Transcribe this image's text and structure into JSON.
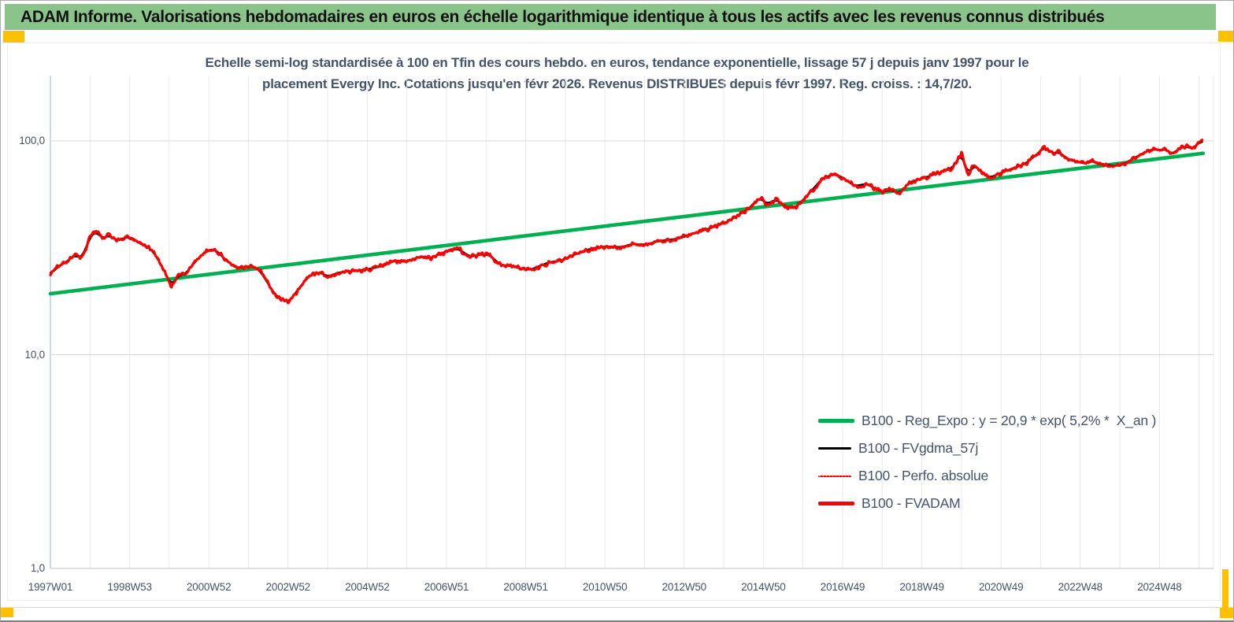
{
  "header": {
    "title": "ADAM Informe. Valorisations hebdomadaires en euros en échelle logarithmique identique à tous les actifs avec les revenus connus distribués"
  },
  "colors": {
    "header_bg": "#8BC48B",
    "accent_yellow": "#FFC000",
    "title_text": "#44546A",
    "axis_text": "#44546A",
    "grid_vertical": "#E7E9EB",
    "grid_horizontal": "#D9D9D9",
    "y_axis_line": "#B4C2D2",
    "x_axis_line": "#C9CDD1",
    "green": "#00B050",
    "red": "#FF0000",
    "black": "#000000"
  },
  "chart_data": {
    "type": "line",
    "title_line1": "Echelle semi-log standardisée à 100 en Tfin des cours hebdo. en euros, tendance exponentielle, lissage 57 j depuis janv 1997 pour le",
    "title_line2": "placement Evergy Inc. Cotations jusqu'en févr 2026. Revenus DISTRIBUES depuis févr 1997. Reg. croiss. : 14,7/20.",
    "y_axis": {
      "scale": "log",
      "ticks": [
        {
          "label": "100,0",
          "value": 100
        },
        {
          "label": "10,0",
          "value": 10
        },
        {
          "label": "1,0",
          "value": 1
        }
      ],
      "range": [
        1,
        200
      ]
    },
    "x_axis": {
      "unit": "year-week",
      "range_years": [
        1997.0,
        2027.3
      ],
      "gridline_interval_years": 1,
      "ticks": [
        {
          "label": "1997W01",
          "year": 1997.0
        },
        {
          "label": "1998W53",
          "year": 1999.0
        },
        {
          "label": "2000W52",
          "year": 2001.0
        },
        {
          "label": "2002W52",
          "year": 2003.0
        },
        {
          "label": "2004W52",
          "year": 2005.0
        },
        {
          "label": "2006W51",
          "year": 2007.0
        },
        {
          "label": "2008W51",
          "year": 2009.0
        },
        {
          "label": "2010W50",
          "year": 2011.0
        },
        {
          "label": "2012W50",
          "year": 2013.0
        },
        {
          "label": "2014W50",
          "year": 2015.0
        },
        {
          "label": "2016W49",
          "year": 2017.0
        },
        {
          "label": "2018W49",
          "year": 2019.0
        },
        {
          "label": "2020W49",
          "year": 2021.0
        },
        {
          "label": "2022W48",
          "year": 2023.0
        },
        {
          "label": "2024W48",
          "year": 2025.0
        }
      ]
    },
    "series": [
      {
        "id": "reg_expo",
        "legend": "B100 - Reg_Expo : y = 20,9 * exp( 5,2% *  X_an )",
        "color": "#00B050",
        "style": "solid",
        "width": 4.6,
        "points": [
          [
            1997.0,
            19.3
          ],
          [
            2026.1,
            87.5
          ]
        ]
      },
      {
        "id": "fvgdma_57j",
        "legend": "B100 - FVgdma_57j",
        "color": "#000000",
        "style": "solid",
        "width": 2.4,
        "derived": "smooth_of_fvadam"
      },
      {
        "id": "perfo_absolue",
        "legend": "B100 - Perfo. absolue",
        "color": "#FF0000",
        "style": "dotted",
        "width": 1.4,
        "derived": "same_as_fvadam"
      },
      {
        "id": "fvadam",
        "legend": "B100 - FVADAM",
        "color": "#FF0000",
        "style": "solid",
        "width": 3.2,
        "appearance": {
          "jitter_pct": 0.016,
          "seed": 7
        },
        "points": [
          [
            1997.0,
            23.5
          ],
          [
            1997.15,
            25.5
          ],
          [
            1997.3,
            26.5
          ],
          [
            1997.45,
            27.5
          ],
          [
            1997.6,
            29.5
          ],
          [
            1997.75,
            28.0
          ],
          [
            1997.9,
            31.5
          ],
          [
            1998.0,
            35.5
          ],
          [
            1998.15,
            37.8
          ],
          [
            1998.3,
            35.0
          ],
          [
            1998.5,
            36.2
          ],
          [
            1998.65,
            34.2
          ],
          [
            1998.8,
            34.8
          ],
          [
            1998.95,
            35.6
          ],
          [
            1999.1,
            35.0
          ],
          [
            1999.3,
            32.7
          ],
          [
            1999.5,
            31.8
          ],
          [
            1999.7,
            28.3
          ],
          [
            1999.9,
            24.3
          ],
          [
            2000.05,
            20.9
          ],
          [
            2000.2,
            23.2
          ],
          [
            2000.4,
            23.8
          ],
          [
            2000.6,
            26.4
          ],
          [
            2000.8,
            29.2
          ],
          [
            2001.0,
            30.8
          ],
          [
            2001.15,
            31.3
          ],
          [
            2001.3,
            29.2
          ],
          [
            2001.5,
            27.1
          ],
          [
            2001.7,
            25.3
          ],
          [
            2001.9,
            25.7
          ],
          [
            2002.1,
            26.0
          ],
          [
            2002.3,
            24.6
          ],
          [
            2002.5,
            21.4
          ],
          [
            2002.7,
            18.8
          ],
          [
            2002.9,
            18.0
          ],
          [
            2003.0,
            17.5
          ],
          [
            2003.2,
            19.6
          ],
          [
            2003.4,
            21.9
          ],
          [
            2003.6,
            23.9
          ],
          [
            2003.8,
            24.3
          ],
          [
            2004.0,
            23.2
          ],
          [
            2004.3,
            24.3
          ],
          [
            2004.6,
            24.6
          ],
          [
            2004.9,
            24.9
          ],
          [
            2005.1,
            25.3
          ],
          [
            2005.4,
            26.0
          ],
          [
            2005.7,
            27.6
          ],
          [
            2006.0,
            27.2
          ],
          [
            2006.3,
            28.7
          ],
          [
            2006.6,
            28.3
          ],
          [
            2007.0,
            30.5
          ],
          [
            2007.3,
            31.3
          ],
          [
            2007.6,
            28.7
          ],
          [
            2007.9,
            29.5
          ],
          [
            2008.1,
            29.2
          ],
          [
            2008.35,
            26.4
          ],
          [
            2008.6,
            26.0
          ],
          [
            2008.9,
            25.3
          ],
          [
            2009.1,
            24.9
          ],
          [
            2009.35,
            26.0
          ],
          [
            2009.6,
            27.1
          ],
          [
            2009.9,
            27.6
          ],
          [
            2010.2,
            29.2
          ],
          [
            2010.5,
            30.8
          ],
          [
            2010.8,
            31.8
          ],
          [
            2011.1,
            32.1
          ],
          [
            2011.4,
            31.8
          ],
          [
            2011.7,
            33.0
          ],
          [
            2012.0,
            32.7
          ],
          [
            2012.4,
            34.1
          ],
          [
            2012.8,
            34.8
          ],
          [
            2013.0,
            35.6
          ],
          [
            2013.4,
            37.8
          ],
          [
            2013.6,
            38.7
          ],
          [
            2014.1,
            42.0
          ],
          [
            2014.6,
            47.8
          ],
          [
            2014.9,
            54.2
          ],
          [
            2015.1,
            50.6
          ],
          [
            2015.3,
            53.3
          ],
          [
            2015.6,
            49.0
          ],
          [
            2015.8,
            48.6
          ],
          [
            2016.1,
            55.4
          ],
          [
            2016.5,
            67.1
          ],
          [
            2016.8,
            70.0
          ],
          [
            2017.0,
            67.5
          ],
          [
            2017.3,
            61.5
          ],
          [
            2017.6,
            63.0
          ],
          [
            2018.0,
            57.6
          ],
          [
            2018.2,
            59.1
          ],
          [
            2018.45,
            57.0
          ],
          [
            2018.7,
            64.4
          ],
          [
            2019.0,
            66.5
          ],
          [
            2019.2,
            68.6
          ],
          [
            2019.5,
            71.6
          ],
          [
            2019.7,
            73.6
          ],
          [
            2019.85,
            78.0
          ],
          [
            2020.0,
            88.0
          ],
          [
            2020.17,
            68.6
          ],
          [
            2020.3,
            77.5
          ],
          [
            2020.5,
            72.0
          ],
          [
            2020.7,
            67.4
          ],
          [
            2020.9,
            69.5
          ],
          [
            2021.1,
            72.3
          ],
          [
            2021.35,
            75.0
          ],
          [
            2021.6,
            78.0
          ],
          [
            2021.85,
            85.0
          ],
          [
            2022.1,
            93.5
          ],
          [
            2022.3,
            87.0
          ],
          [
            2022.45,
            89.0
          ],
          [
            2022.7,
            82.0
          ],
          [
            2022.9,
            80.0
          ],
          [
            2023.1,
            78.5
          ],
          [
            2023.3,
            80.5
          ],
          [
            2023.5,
            78.5
          ],
          [
            2023.7,
            77.0
          ],
          [
            2024.0,
            76.5
          ],
          [
            2024.2,
            80.0
          ],
          [
            2024.45,
            85.0
          ],
          [
            2024.6,
            88.0
          ],
          [
            2024.8,
            91.5
          ],
          [
            2025.0,
            90.5
          ],
          [
            2025.15,
            92.0
          ],
          [
            2025.3,
            86.5
          ],
          [
            2025.5,
            92.0
          ],
          [
            2025.65,
            94.5
          ],
          [
            2025.8,
            92.0
          ],
          [
            2025.95,
            96.0
          ],
          [
            2026.08,
            101.0
          ]
        ]
      }
    ]
  }
}
